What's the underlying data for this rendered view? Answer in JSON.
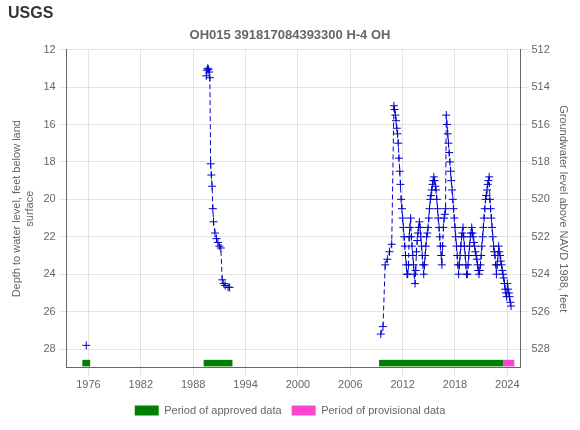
{
  "chart_data": {
    "type": "line",
    "title": "OH015 391817084393300 H-4 OH",
    "annotations": [
      {
        "text": "USGS"
      }
    ],
    "ylabel": "Depth to water level, feet below land\nsurface",
    "y2label": "Groundwater level above NAVD 1988, feet",
    "xlim": [
      1973.5,
      2025.5
    ],
    "xticks": [
      1976,
      1982,
      1988,
      1994,
      2000,
      2006,
      2012,
      2018,
      2024
    ],
    "ylim": [
      29,
      12
    ],
    "yticks": [
      12,
      14,
      16,
      18,
      20,
      22,
      24,
      26,
      28
    ],
    "y2lim": [
      529,
      512
    ],
    "y2ticks": [
      528,
      526,
      524,
      522,
      520,
      518,
      516,
      514,
      512
    ],
    "grid": true,
    "legend": "bottom",
    "series": [
      {
        "type": "line",
        "color": "#0000cc",
        "marker": "+",
        "line_style": "none",
        "x": [
          1975.75
        ],
        "values": [
          27.8
        ]
      },
      {
        "type": "line",
        "color": "#0000cc",
        "marker": "+",
        "line_style": "dashed",
        "x": [
          1989.5,
          1989.58,
          1989.66,
          1989.75,
          1989.83,
          1989.91,
          1990.0,
          1990.08,
          1990.17,
          1990.25,
          1990.33,
          1990.5,
          1990.67,
          1990.83,
          1991.0,
          1991.17,
          1991.33,
          1991.5,
          1991.67,
          1992.0,
          1992.17
        ],
        "values": [
          13.4,
          13.1,
          13.0,
          13.05,
          13.2,
          13.5,
          18.1,
          18.7,
          19.3,
          20.5,
          21.2,
          21.8,
          22.1,
          22.3,
          22.5,
          22.6,
          24.3,
          24.5,
          24.6,
          24.7,
          24.7
        ]
      },
      {
        "type": "line",
        "color": "#0000cc",
        "marker": "+",
        "line_style": "dashed",
        "x": [
          2009.5,
          2009.75,
          2010.0,
          2010.25,
          2010.5,
          2010.75,
          2011.0,
          2011.08,
          2011.17,
          2011.25,
          2011.33,
          2011.42,
          2011.5,
          2011.58,
          2011.67,
          2011.75,
          2011.83,
          2011.92,
          2012.0,
          2012.08,
          2012.17,
          2012.25,
          2012.33,
          2012.42,
          2012.5,
          2012.58,
          2012.67,
          2012.75,
          2012.83,
          2012.92,
          2013.0,
          2013.08,
          2013.17,
          2013.25,
          2013.33,
          2013.42,
          2013.5,
          2013.58,
          2013.67,
          2013.75,
          2013.83,
          2013.92,
          2014.0,
          2014.08,
          2014.17,
          2014.25,
          2014.33,
          2014.42,
          2014.5,
          2014.58,
          2014.67,
          2014.75,
          2014.83,
          2014.92,
          2015.0,
          2015.08,
          2015.17,
          2015.25,
          2015.33,
          2015.42,
          2015.5,
          2015.58,
          2015.67,
          2015.75,
          2015.83,
          2015.92,
          2016.0,
          2016.08,
          2016.17,
          2016.25,
          2016.33,
          2016.42,
          2016.5,
          2016.58,
          2016.67,
          2016.75,
          2016.83,
          2016.92,
          2017.0,
          2017.08,
          2017.17,
          2017.25,
          2017.33,
          2017.42,
          2017.5,
          2017.58,
          2017.67,
          2017.75,
          2017.83,
          2017.92,
          2018.0,
          2018.08,
          2018.17,
          2018.25,
          2018.33,
          2018.42,
          2018.5,
          2018.58,
          2018.67,
          2018.75,
          2018.83,
          2018.92,
          2019.0,
          2019.08,
          2019.17,
          2019.25,
          2019.33,
          2019.42,
          2019.5,
          2019.58,
          2019.67,
          2019.75,
          2019.83,
          2019.92,
          2020.0,
          2020.08,
          2020.17,
          2020.25,
          2020.33,
          2020.42,
          2020.5,
          2020.58,
          2020.67,
          2020.75,
          2020.83,
          2020.92,
          2021.0,
          2021.08,
          2021.17,
          2021.25,
          2021.33,
          2021.42,
          2021.5,
          2021.58,
          2021.67,
          2021.75,
          2021.83,
          2021.92,
          2022.0,
          2022.08,
          2022.17,
          2022.25,
          2022.33,
          2022.42,
          2022.5,
          2022.58,
          2022.67,
          2022.75,
          2022.83,
          2022.92,
          2023.0,
          2023.08,
          2023.17,
          2023.25,
          2023.33,
          2023.42,
          2023.5,
          2023.58,
          2023.67,
          2023.75,
          2023.83,
          2023.92,
          2024.0,
          2024.08,
          2024.17,
          2024.25,
          2024.33,
          2024.42
        ],
        "values": [
          27.2,
          26.8,
          23.5,
          23.2,
          22.8,
          22.4,
          15.0,
          15.2,
          15.5,
          15.8,
          16.2,
          16.5,
          17.0,
          17.8,
          18.5,
          19.2,
          20.0,
          20.5,
          21.0,
          21.5,
          22.0,
          22.5,
          23.0,
          23.5,
          24.0,
          24.0,
          23.5,
          22.0,
          21.5,
          21.0,
          22.0,
          22.5,
          23.0,
          23.5,
          24.0,
          24.5,
          23.8,
          22.8,
          22.2,
          21.8,
          21.5,
          21.2,
          21.5,
          22.0,
          22.5,
          23.0,
          23.5,
          24.0,
          23.5,
          23.0,
          22.5,
          22.0,
          21.8,
          21.5,
          21.0,
          20.5,
          20.0,
          19.8,
          19.5,
          19.2,
          19.0,
          18.8,
          19.0,
          19.3,
          19.5,
          20.0,
          20.5,
          21.0,
          21.5,
          22.0,
          22.5,
          23.0,
          23.5,
          22.5,
          21.5,
          21.0,
          20.8,
          20.5,
          15.5,
          16.0,
          16.5,
          17.0,
          17.5,
          18.0,
          18.5,
          19.0,
          19.5,
          20.0,
          20.5,
          21.0,
          21.5,
          22.0,
          22.5,
          23.0,
          23.5,
          24.0,
          23.5,
          23.0,
          22.5,
          22.0,
          21.8,
          21.5,
          22.0,
          22.5,
          23.0,
          23.5,
          24.0,
          24.0,
          23.5,
          23.0,
          22.5,
          22.0,
          21.8,
          21.5,
          21.8,
          22.0,
          22.3,
          22.5,
          22.8,
          23.0,
          23.2,
          23.5,
          23.8,
          24.0,
          23.8,
          23.5,
          23.0,
          22.5,
          22.0,
          21.5,
          21.0,
          20.5,
          20.0,
          19.8,
          19.5,
          19.2,
          19.0,
          18.8,
          20.0,
          20.5,
          21.0,
          21.5,
          22.0,
          22.5,
          22.8,
          23.0,
          23.5,
          24.0,
          23.5,
          23.0,
          22.5,
          22.8,
          23.0,
          23.3,
          23.5,
          23.8,
          24.0,
          24.2,
          24.5,
          24.8,
          25.0,
          25.2,
          24.5,
          24.8,
          25.0,
          25.2,
          25.5,
          25.7
        ]
      },
      {
        "name": "Period of approved data",
        "type": "bar",
        "orientation": "horizontal",
        "color": "#008000",
        "ranges": [
          [
            1975.3,
            1976.2
          ],
          [
            1989.2,
            1992.5
          ],
          [
            2009.3,
            2023.5
          ]
        ],
        "y": 28.75,
        "height": 0.35
      },
      {
        "name": "Period of provisional data",
        "type": "bar",
        "orientation": "horizontal",
        "color": "#ff44cc",
        "ranges": [
          [
            2023.5,
            2024.8
          ]
        ],
        "y": 28.75,
        "height": 0.35
      }
    ]
  }
}
